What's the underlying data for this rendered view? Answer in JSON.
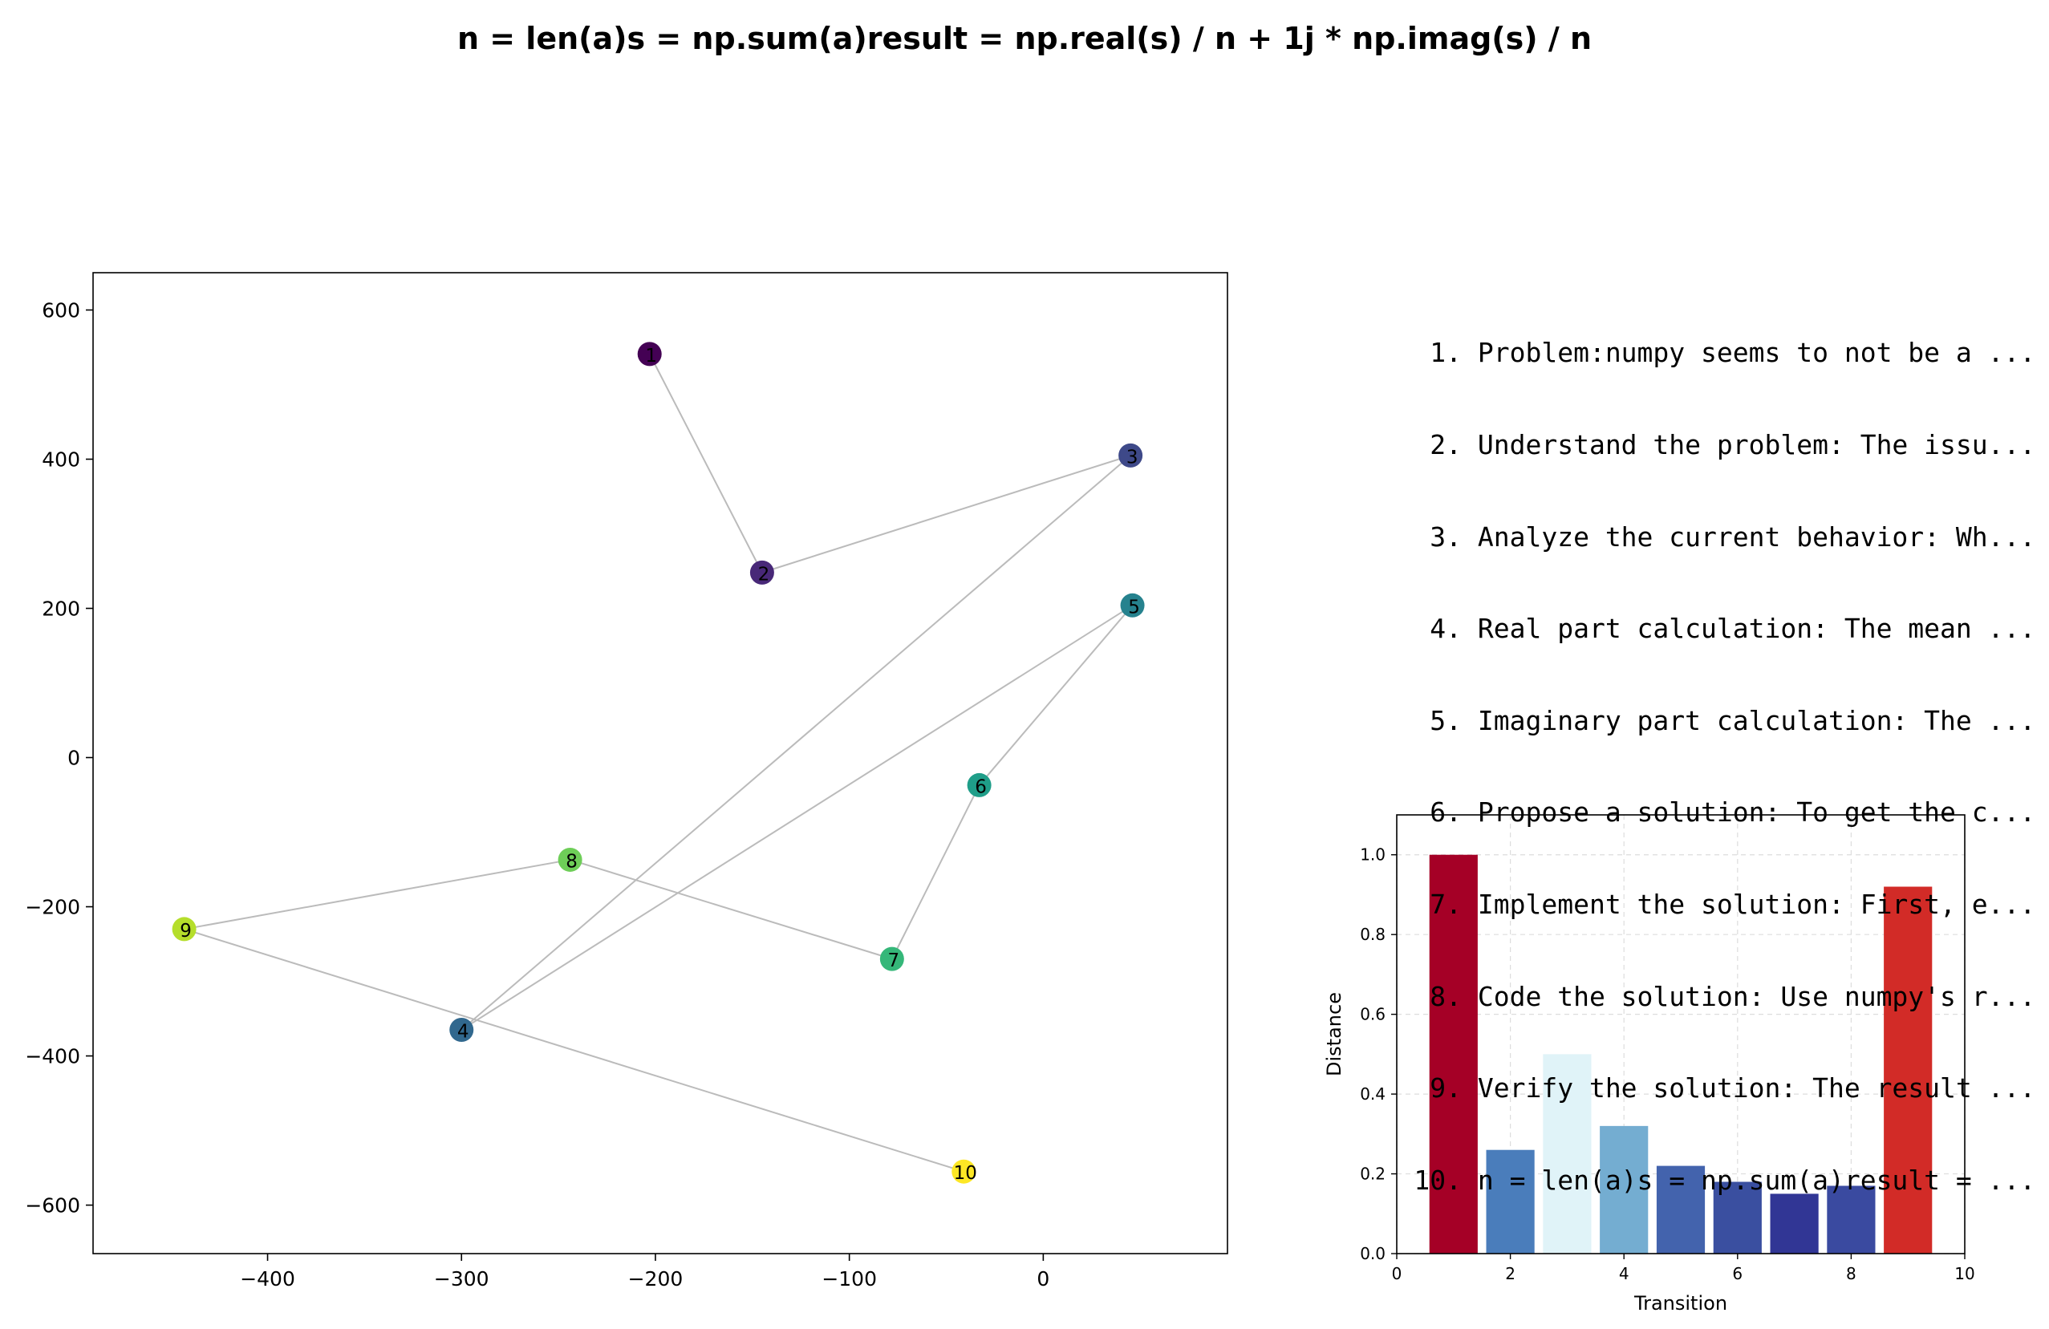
{
  "title": "n = len(a)s = np.sum(a)result = np.real(s) / n + 1j * np.imag(s) / n",
  "steps": [
    {
      "num": "1.",
      "text": "Problem:numpy seems to not be a ..."
    },
    {
      "num": "2.",
      "text": "Understand the problem: The issu..."
    },
    {
      "num": "3.",
      "text": "Analyze the current behavior: Wh..."
    },
    {
      "num": "4.",
      "text": "Real part calculation: The mean ..."
    },
    {
      "num": "5.",
      "text": "Imaginary part calculation: The ..."
    },
    {
      "num": "6.",
      "text": "Propose a solution: To get the c..."
    },
    {
      "num": "7.",
      "text": "Implement the solution: First, e..."
    },
    {
      "num": "8.",
      "text": "Code the solution: Use numpy's r..."
    },
    {
      "num": "9.",
      "text": "Verify the solution: The result ..."
    },
    {
      "num": "10.",
      "text": "n = len(a)s = np.sum(a)result = ..."
    }
  ],
  "chart_data": [
    {
      "type": "scatter",
      "xlim": [
        -490,
        95
      ],
      "ylim": [
        -665,
        650
      ],
      "xticks": [
        -400,
        -300,
        -200,
        -100,
        0
      ],
      "yticks": [
        -600,
        -400,
        -200,
        0,
        200,
        400,
        600
      ],
      "xtick_labels": [
        "−400",
        "−300",
        "−200",
        "−100",
        "0"
      ],
      "ytick_labels": [
        "−600",
        "−400",
        "−200",
        "0",
        "200",
        "400",
        "600"
      ],
      "grid": false,
      "connected": true,
      "line_color": "#bbbbbb",
      "points": [
        {
          "label": "1",
          "x": -203,
          "y": 541,
          "color": "#440154"
        },
        {
          "label": "2",
          "x": -145,
          "y": 248,
          "color": "#482878"
        },
        {
          "label": "3",
          "x": 45,
          "y": 405,
          "color": "#3e4989"
        },
        {
          "label": "4",
          "x": -300,
          "y": -365,
          "color": "#31688e"
        },
        {
          "label": "5",
          "x": 46,
          "y": 204,
          "color": "#26828e"
        },
        {
          "label": "6",
          "x": -33,
          "y": -37,
          "color": "#1f9e89"
        },
        {
          "label": "7",
          "x": -78,
          "y": -270,
          "color": "#35b779"
        },
        {
          "label": "8",
          "x": -244,
          "y": -137,
          "color": "#6ece58"
        },
        {
          "label": "9",
          "x": -443,
          "y": -230,
          "color": "#b5de2b"
        },
        {
          "label": "10",
          "x": -41,
          "y": -555,
          "color": "#fde725"
        }
      ]
    },
    {
      "type": "bar",
      "xlabel": "Transition",
      "ylabel": "Distance",
      "xlim": [
        0,
        10
      ],
      "ylim": [
        0,
        1.1
      ],
      "xticks": [
        0,
        2,
        4,
        6,
        8,
        10
      ],
      "yticks": [
        0.0,
        0.2,
        0.4,
        0.6,
        0.8,
        1.0
      ],
      "xtick_labels": [
        "0",
        "2",
        "4",
        "6",
        "8",
        "10"
      ],
      "ytick_labels": [
        "0.0",
        "0.2",
        "0.4",
        "0.6",
        "0.8",
        "1.0"
      ],
      "grid": true,
      "categories": [
        1,
        2,
        3,
        4,
        5,
        6,
        7,
        8,
        9
      ],
      "values": [
        1.0,
        0.26,
        0.5,
        0.32,
        0.22,
        0.18,
        0.15,
        0.17,
        0.92
      ],
      "colors": [
        "#a50026",
        "#4a7dbb",
        "#e0f3f8",
        "#74add1",
        "#4363ad",
        "#3a4fa0",
        "#313695",
        "#3a4aa0",
        "#d22b27"
      ]
    }
  ]
}
